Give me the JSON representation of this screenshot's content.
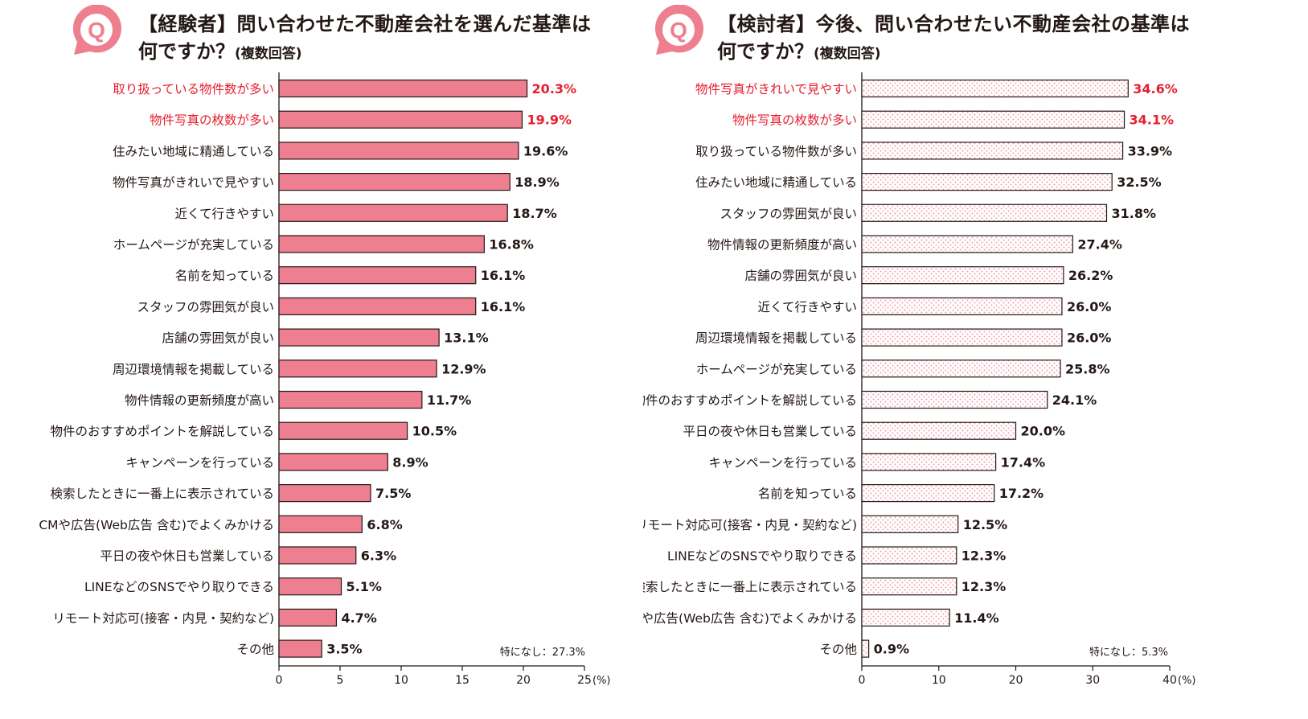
{
  "colors": {
    "accent": "#e61e2d",
    "bar_fill": "#ed7f90",
    "badge": "#ee7f8e",
    "text": "#231815",
    "dot": "#f0a0ae"
  },
  "chart_data": [
    {
      "type": "bar",
      "orientation": "horizontal",
      "badge": "Q",
      "title_line1": "【経験者】問い合わせた不動産会社を選んだ基準は",
      "title_line2": "何ですか？",
      "title_note": "(複数回答)",
      "fill": "solid",
      "categories": [
        "取り扱っている物件数が多い",
        "物件写真の枚数が多い",
        "住みたい地域に精通している",
        "物件写真がきれいで見やすい",
        "近くて行きやすい",
        "ホームページが充実している",
        "名前を知っている",
        "スタッフの雰囲気が良い",
        "店舗の雰囲気が良い",
        "周辺環境情報を掲載している",
        "物件情報の更新頻度が高い",
        "物件のおすすめポイントを解説している",
        "キャンペーンを行っている",
        "検索したときに一番上に表示されている",
        "CMや広告(Web広告 含む)でよくみかける",
        "平日の夜や休日も営業している",
        "LINEなどのSNSでやり取りできる",
        "リモート対応可(接客・内見・契約など)",
        "その他"
      ],
      "values": [
        20.3,
        19.9,
        19.6,
        18.9,
        18.7,
        16.8,
        16.1,
        16.1,
        13.1,
        12.9,
        11.7,
        10.5,
        8.9,
        7.5,
        6.8,
        6.3,
        5.1,
        4.7,
        3.5
      ],
      "value_labels": [
        "20.3%",
        "19.9%",
        "19.6%",
        "18.9%",
        "18.7%",
        "16.8%",
        "16.1%",
        "16.1%",
        "13.1%",
        "12.9%",
        "11.7%",
        "10.5%",
        "8.9%",
        "7.5%",
        "6.8%",
        "6.3%",
        "5.1%",
        "4.7%",
        "3.5%"
      ],
      "highlighted": [
        true,
        true,
        false,
        false,
        false,
        false,
        false,
        false,
        false,
        false,
        false,
        false,
        false,
        false,
        false,
        false,
        false,
        false,
        false
      ],
      "xlim": [
        0,
        25
      ],
      "xticks": [
        0,
        5,
        10,
        15,
        20,
        25
      ],
      "tick_labels": [
        "0",
        "5",
        "10",
        "15",
        "20",
        "25"
      ],
      "unit_label": "(%)",
      "footnote": "特になし：27.3%"
    },
    {
      "type": "bar",
      "orientation": "horizontal",
      "badge": "Q",
      "title_line1": "【検討者】今後、問い合わせたい不動産会社の基準は",
      "title_line2": "何ですか？",
      "title_note": "(複数回答)",
      "fill": "dotted",
      "categories": [
        "物件写真がきれいで見やすい",
        "物件写真の枚数が多い",
        "取り扱っている物件数が多い",
        "住みたい地域に精通している",
        "スタッフの雰囲気が良い",
        "物件情報の更新頻度が高い",
        "店舗の雰囲気が良い",
        "近くて行きやすい",
        "周辺環境情報を掲載している",
        "ホームページが充実している",
        "物件のおすすめポイントを解説している",
        "平日の夜や休日も営業している",
        "キャンペーンを行っている",
        "名前を知っている",
        "リモート対応可(接客・内見・契約など)",
        "LINEなどのSNSでやり取りできる",
        "検索したときに一番上に表示されている",
        "CMや広告(Web広告 含む)でよくみかける",
        "その他"
      ],
      "values": [
        34.6,
        34.1,
        33.9,
        32.5,
        31.8,
        27.4,
        26.2,
        26.0,
        26.0,
        25.8,
        24.1,
        20.0,
        17.4,
        17.2,
        12.5,
        12.3,
        12.3,
        11.4,
        0.9
      ],
      "value_labels": [
        "34.6%",
        "34.1%",
        "33.9%",
        "32.5%",
        "31.8%",
        "27.4%",
        "26.2%",
        "26.0%",
        "26.0%",
        "25.8%",
        "24.1%",
        "20.0%",
        "17.4%",
        "17.2%",
        "12.5%",
        "12.3%",
        "12.3%",
        "11.4%",
        "0.9%"
      ],
      "highlighted": [
        true,
        true,
        false,
        false,
        false,
        false,
        false,
        false,
        false,
        false,
        false,
        false,
        false,
        false,
        false,
        false,
        false,
        false,
        false
      ],
      "xlim": [
        0,
        40
      ],
      "xticks": [
        0,
        10,
        20,
        30,
        40
      ],
      "tick_labels": [
        "0",
        "10",
        "20",
        "30",
        "40"
      ],
      "unit_label": "(%)",
      "footnote": "特になし：5.3%"
    }
  ]
}
